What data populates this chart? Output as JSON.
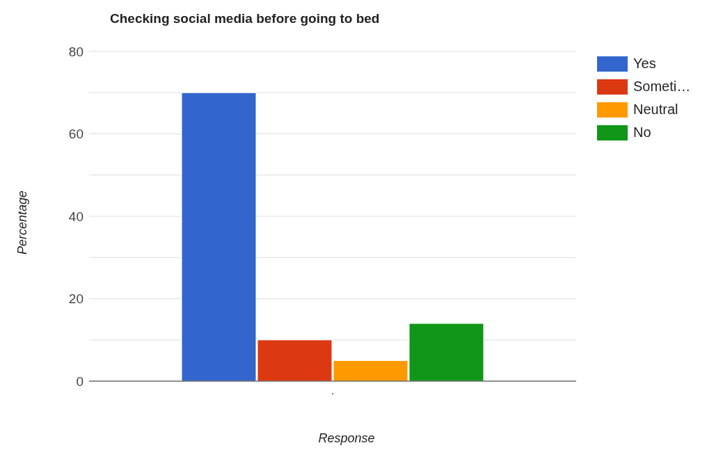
{
  "chart_data": {
    "type": "bar",
    "title": "Checking social media before going to bed",
    "xlabel": "Response",
    "ylabel": "Percentage",
    "categories": [
      "."
    ],
    "series": [
      {
        "name": "Yes",
        "color": "#3366cc",
        "values": [
          70
        ]
      },
      {
        "name": "Someti…",
        "color": "#dc3912",
        "values": [
          10
        ]
      },
      {
        "name": "Neutral",
        "color": "#ff9900",
        "values": [
          5
        ]
      },
      {
        "name": "No",
        "color": "#109618",
        "values": [
          14
        ]
      }
    ],
    "ylim": [
      0,
      80
    ],
    "yticks": [
      0,
      {
        "value": 10,
        "label": null
      },
      20,
      {
        "value": 30,
        "label": null
      },
      40,
      {
        "value": 50,
        "label": null
      },
      60,
      {
        "value": 70,
        "label": null
      },
      80
    ],
    "grid": "y",
    "legend": "top right"
  }
}
